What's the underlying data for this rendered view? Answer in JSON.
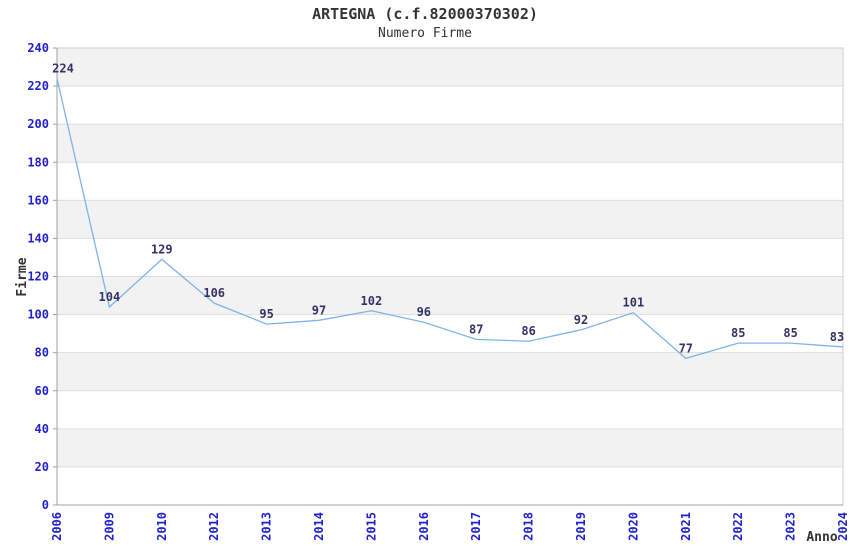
{
  "chart_data": {
    "type": "line",
    "title": "ARTEGNA (c.f.82000370302)",
    "subtitle": "Numero Firme",
    "xlabel": "Anno",
    "ylabel": "Firme",
    "categories": [
      "2006",
      "2009",
      "2010",
      "2012",
      "2013",
      "2014",
      "2015",
      "2016",
      "2017",
      "2018",
      "2019",
      "2020",
      "2021",
      "2022",
      "2023",
      "2024"
    ],
    "values": [
      224,
      104,
      129,
      106,
      95,
      97,
      102,
      96,
      87,
      86,
      92,
      101,
      77,
      85,
      85,
      83
    ],
    "ylim": [
      0,
      240
    ],
    "ytick_step": 20,
    "grid": true,
    "legend": "none",
    "bands_alternating": true,
    "colors": {
      "line": "#7fb3e8",
      "tick_label": "#2222cc",
      "data_label": "#333366",
      "band": "#f2f2f2",
      "gridline": "#dddddd",
      "plot_border": "#cccccc",
      "axis_line": "#a0a0a0",
      "text": "#333333"
    }
  }
}
